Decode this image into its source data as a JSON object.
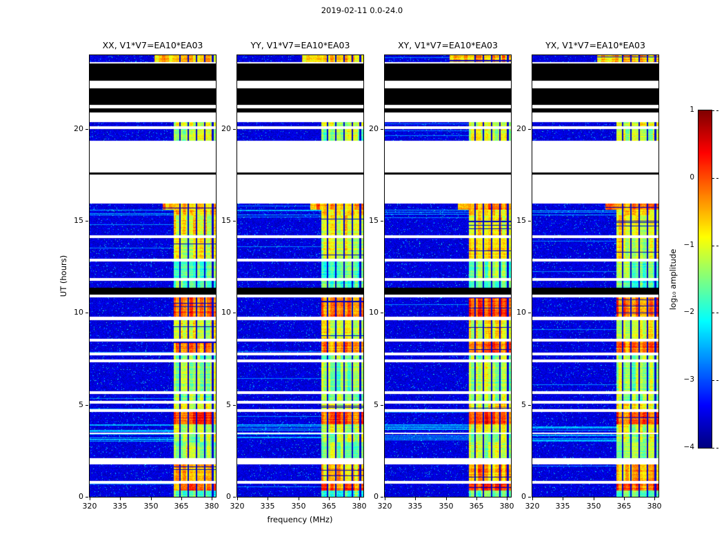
{
  "figure": {
    "title": "2019-02-11 0.0-24.0"
  },
  "chart_data": {
    "type": "heatmap",
    "title": "2019-02-11 0.0-24.0",
    "panels": [
      {
        "label": "XX, V1*V7=EA10*EA03",
        "seed": 11,
        "gain": 1.0
      },
      {
        "label": "YY, V1*V7=EA10*EA03",
        "seed": 22,
        "gain": 0.96
      },
      {
        "label": "XY, V1*V7=EA10*EA03",
        "seed": 33,
        "gain": 1.05
      },
      {
        "label": "YX, V1*V7=EA10*EA03",
        "seed": 44,
        "gain": 1.0
      }
    ],
    "x_axis": {
      "label": "frequency (MHz)",
      "range": [
        320,
        382
      ],
      "ticks": [
        320,
        335,
        350,
        365,
        380
      ]
    },
    "y_axis": {
      "label": "UT (hours)",
      "range": [
        0,
        24
      ],
      "ticks": [
        0,
        5,
        10,
        15,
        20
      ]
    },
    "colorbar": {
      "label": "log₁₀ amplitude",
      "range": [
        -4,
        1
      ],
      "tick_labels": [
        "1",
        "0",
        "−1",
        "−2",
        "−3",
        "−4"
      ],
      "colormap": "jet"
    },
    "bright_band_mhz": [
      361.5,
      382
    ],
    "grid_line_freqs": [
      364.5,
      368.5,
      372.5,
      376.5,
      380.5
    ],
    "base_level": -3.55,
    "segments": [
      {
        "t0": 0.0,
        "t1": 0.33,
        "kind": "data",
        "bright": 0.3
      },
      {
        "t0": 0.33,
        "t1": 0.72,
        "kind": "data",
        "bright": 0.97
      },
      {
        "t0": 0.72,
        "t1": 0.88,
        "kind": "white"
      },
      {
        "t0": 0.88,
        "t1": 1.75,
        "kind": "data",
        "bright": 0.8
      },
      {
        "t0": 1.75,
        "t1": 2.1,
        "kind": "white"
      },
      {
        "t0": 2.1,
        "t1": 2.95,
        "kind": "data",
        "bright": 0.5
      },
      {
        "t0": 2.95,
        "t1": 3.4,
        "kind": "data",
        "bright": 0.5,
        "stripes": true
      },
      {
        "t0": 3.4,
        "t1": 3.5,
        "kind": "white"
      },
      {
        "t0": 3.5,
        "t1": 3.95,
        "kind": "data",
        "bright": 0.55,
        "stripes": true
      },
      {
        "t0": 3.95,
        "t1": 4.6,
        "kind": "data",
        "bright": 1.0
      },
      {
        "t0": 4.6,
        "t1": 4.75,
        "kind": "white"
      },
      {
        "t0": 4.75,
        "t1": 5.05,
        "kind": "data",
        "bright": 0.6
      },
      {
        "t0": 5.05,
        "t1": 5.2,
        "kind": "white"
      },
      {
        "t0": 5.2,
        "t1": 5.6,
        "kind": "data",
        "bright": 0.45
      },
      {
        "t0": 5.6,
        "t1": 5.75,
        "kind": "white"
      },
      {
        "t0": 5.75,
        "t1": 7.3,
        "kind": "data",
        "bright": 0.45
      },
      {
        "t0": 7.3,
        "t1": 7.45,
        "kind": "white"
      },
      {
        "t0": 7.45,
        "t1": 7.7,
        "kind": "data",
        "bright": 0.4
      },
      {
        "t0": 7.7,
        "t1": 7.85,
        "kind": "white"
      },
      {
        "t0": 7.85,
        "t1": 8.45,
        "kind": "data",
        "bright": 0.9
      },
      {
        "t0": 8.45,
        "t1": 8.6,
        "kind": "white"
      },
      {
        "t0": 8.6,
        "t1": 9.6,
        "kind": "data",
        "bright": 0.6
      },
      {
        "t0": 9.6,
        "t1": 9.8,
        "kind": "white"
      },
      {
        "t0": 9.8,
        "t1": 10.85,
        "kind": "data",
        "bright": 0.95
      },
      {
        "t0": 10.85,
        "t1": 11.0,
        "kind": "white"
      },
      {
        "t0": 11.0,
        "t1": 11.35,
        "kind": "black"
      },
      {
        "t0": 11.35,
        "t1": 11.75,
        "kind": "data",
        "bright": 0.3
      },
      {
        "t0": 11.75,
        "t1": 11.9,
        "kind": "white"
      },
      {
        "t0": 11.9,
        "t1": 12.8,
        "kind": "data",
        "bright": 0.35
      },
      {
        "t0": 12.8,
        "t1": 12.95,
        "kind": "white"
      },
      {
        "t0": 12.95,
        "t1": 14.05,
        "kind": "data",
        "bright": 0.6
      },
      {
        "t0": 14.05,
        "t1": 14.2,
        "kind": "white"
      },
      {
        "t0": 14.2,
        "t1": 15.3,
        "kind": "data",
        "bright": 0.65
      },
      {
        "t0": 15.3,
        "t1": 15.6,
        "kind": "data",
        "bright": 0.7,
        "stripes": true
      },
      {
        "t0": 15.6,
        "t1": 15.95,
        "kind": "data",
        "bright": 0.85,
        "bright_from": 356
      },
      {
        "t0": 15.95,
        "t1": 17.5,
        "kind": "white"
      },
      {
        "t0": 17.5,
        "t1": 17.62,
        "kind": "black"
      },
      {
        "t0": 17.62,
        "t1": 19.35,
        "kind": "white"
      },
      {
        "t0": 19.35,
        "t1": 20.0,
        "kind": "data",
        "bright": 0.5
      },
      {
        "t0": 20.0,
        "t1": 20.12,
        "kind": "white"
      },
      {
        "t0": 20.12,
        "t1": 20.38,
        "kind": "data",
        "bright": 0.55
      },
      {
        "t0": 20.38,
        "t1": 20.88,
        "kind": "white"
      },
      {
        "t0": 20.88,
        "t1": 21.1,
        "kind": "black"
      },
      {
        "t0": 21.1,
        "t1": 21.3,
        "kind": "white"
      },
      {
        "t0": 21.3,
        "t1": 22.2,
        "kind": "black"
      },
      {
        "t0": 22.2,
        "t1": 22.6,
        "kind": "white"
      },
      {
        "t0": 22.6,
        "t1": 23.55,
        "kind": "black"
      },
      {
        "t0": 23.55,
        "t1": 23.62,
        "kind": "white"
      },
      {
        "t0": 23.62,
        "t1": 24.01,
        "kind": "data",
        "bright": 0.75,
        "bright_from": 352
      }
    ]
  }
}
